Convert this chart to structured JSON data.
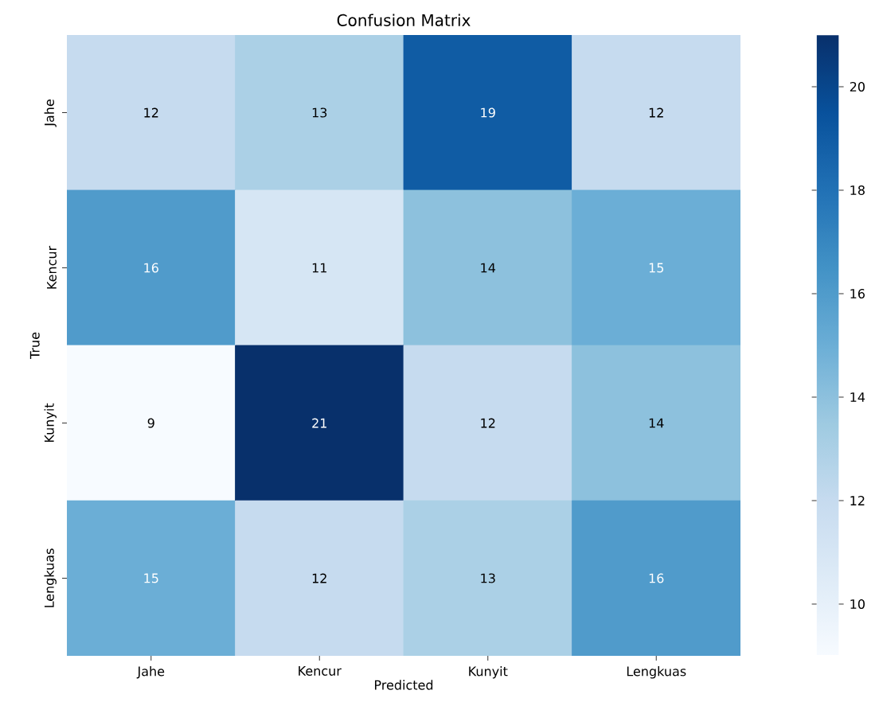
{
  "chart_data": {
    "type": "heatmap",
    "title": "Confusion Matrix",
    "xlabel": "Predicted",
    "ylabel": "True",
    "categories": [
      "Jahe",
      "Kencur",
      "Kunyit",
      "Lengkuas"
    ],
    "y_categories": [
      "Jahe",
      "Kencur",
      "Kunyit",
      "Lengkuas"
    ],
    "cells": [
      [
        12,
        13,
        19,
        12
      ],
      [
        16,
        11,
        14,
        15
      ],
      [
        9,
        21,
        12,
        14
      ],
      [
        15,
        12,
        13,
        16
      ]
    ],
    "clim": [
      9,
      21
    ],
    "cticks": [
      10,
      12,
      14,
      16,
      18,
      20
    ],
    "data_labels": true
  }
}
